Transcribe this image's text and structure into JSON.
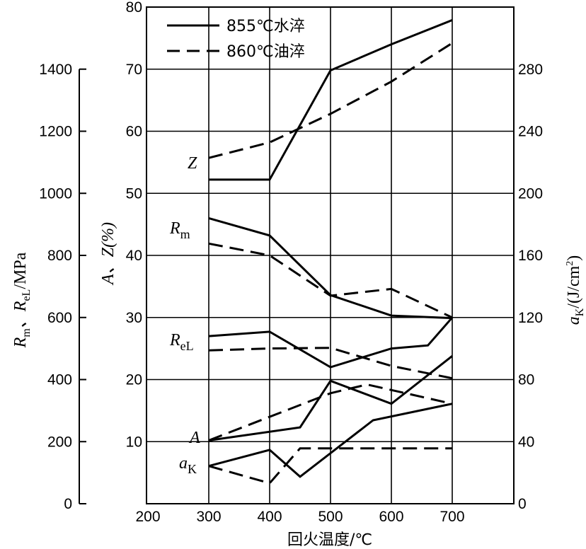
{
  "chart_data": {
    "type": "line",
    "xlabel": "回火温度/℃",
    "xlim": [
      200,
      800
    ],
    "x_ticks": [
      "200",
      "300",
      "400",
      "500",
      "600",
      "700"
    ],
    "axes": {
      "left": {
        "label": "Rm、ReL/MPa",
        "label_parts": [
          "R",
          "m",
          "、R",
          "eL",
          "/MPa"
        ],
        "lim": [
          0,
          1600
        ],
        "ticks": [
          "0",
          "200",
          "400",
          "600",
          "800",
          "1000",
          "1200",
          "1400"
        ],
        "tick_values": [
          0,
          200,
          400,
          600,
          800,
          1000,
          1200,
          1400
        ]
      },
      "middle": {
        "label": "A、Z(%)",
        "lim": [
          0,
          80
        ],
        "ticks": [
          "10",
          "20",
          "30",
          "40",
          "50",
          "60",
          "70",
          "80"
        ],
        "tick_values": [
          10,
          20,
          30,
          40,
          50,
          60,
          70,
          80
        ]
      },
      "right": {
        "label": "aK/(J/cm²)",
        "label_parts": [
          "a",
          "K",
          "/(J/cm",
          "2",
          ")"
        ],
        "lim": [
          0,
          320
        ],
        "ticks": [
          "0",
          "40",
          "80",
          "120",
          "160",
          "200",
          "240",
          "280"
        ],
        "tick_values": [
          0,
          40,
          80,
          120,
          160,
          200,
          240,
          280
        ]
      }
    },
    "grid": true,
    "legend": {
      "position": "top-left",
      "entries": [
        {
          "label": "855℃水淬",
          "style": "solid"
        },
        {
          "label": "860℃油淬",
          "style": "dashed"
        }
      ]
    },
    "curve_labels": [
      {
        "text": "Z",
        "sub": ""
      },
      {
        "text": "R",
        "sub": "m"
      },
      {
        "text": "R",
        "sub": "eL"
      },
      {
        "text": "A",
        "sub": ""
      },
      {
        "text": "a",
        "sub": "K"
      }
    ],
    "series": [
      {
        "curve": "Z",
        "style": "solid",
        "axis": "middle",
        "x": [
          300,
          400,
          500,
          600,
          700
        ],
        "y": [
          52.2,
          52.2,
          69.8,
          74.0,
          77.9
        ]
      },
      {
        "curve": "Z",
        "style": "dashed",
        "axis": "middle",
        "x": [
          300,
          400,
          500,
          600,
          700
        ],
        "y": [
          55.7,
          58.2,
          62.8,
          68.0,
          74.2
        ]
      },
      {
        "curve": "Rm",
        "style": "solid",
        "axis": "left",
        "x": [
          300,
          400,
          500,
          600,
          700
        ],
        "y": [
          920,
          864,
          672,
          606,
          598
        ]
      },
      {
        "curve": "Rm",
        "style": "dashed",
        "axis": "left",
        "x": [
          300,
          400,
          500,
          600,
          700
        ],
        "y": [
          838,
          800,
          670,
          692,
          600
        ]
      },
      {
        "curve": "ReL",
        "style": "solid",
        "axis": "left",
        "x": [
          300,
          400,
          500,
          600,
          660,
          700
        ],
        "y": [
          540,
          554,
          440,
          500,
          510,
          600
        ]
      },
      {
        "curve": "ReL",
        "style": "dashed",
        "axis": "left",
        "x": [
          300,
          400,
          500,
          600,
          700
        ],
        "y": [
          494,
          500,
          502,
          444,
          404
        ]
      },
      {
        "curve": "A",
        "style": "solid",
        "axis": "middle",
        "x": [
          300,
          450,
          500,
          600,
          700
        ],
        "y": [
          10.2,
          12.3,
          19.8,
          16.1,
          23.8
        ]
      },
      {
        "curve": "A",
        "style": "dashed",
        "axis": "middle",
        "x": [
          300,
          500,
          560,
          700
        ],
        "y": [
          10.2,
          17.8,
          19.2,
          16.1
        ]
      },
      {
        "curve": "aK",
        "style": "solid",
        "axis": "right",
        "x": [
          300,
          400,
          450,
          570,
          700
        ],
        "y": [
          24.3,
          34.7,
          17.4,
          53.8,
          64.4
        ]
      },
      {
        "curve": "aK",
        "style": "dashed",
        "axis": "right",
        "x": [
          300,
          400,
          450,
          700
        ],
        "y": [
          24.3,
          13.2,
          35.7,
          35.7
        ]
      }
    ]
  }
}
